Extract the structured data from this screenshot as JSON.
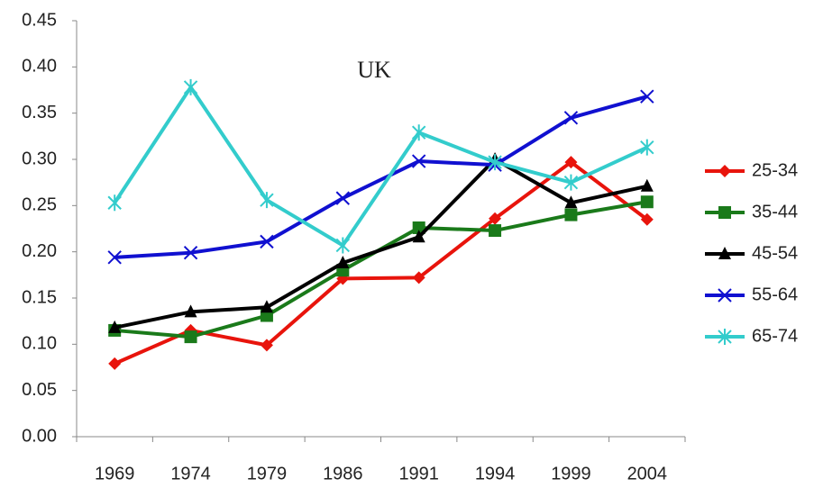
{
  "chart_data": {
    "type": "line",
    "title": "UK",
    "categories": [
      "1969",
      "1974",
      "1979",
      "1986",
      "1991",
      "1994",
      "1999",
      "2004"
    ],
    "ylim": [
      0,
      0.45
    ],
    "yticks": [
      {
        "value": 0,
        "label": "0.00"
      },
      {
        "value": 0.05,
        "label": "0.05"
      },
      {
        "value": 0.1,
        "label": "0.10"
      },
      {
        "value": 0.15,
        "label": "0.15"
      },
      {
        "value": 0.2,
        "label": "0.20"
      },
      {
        "value": 0.25,
        "label": "0.25"
      },
      {
        "value": 0.3,
        "label": "0.30"
      },
      {
        "value": 0.35,
        "label": "0.35"
      },
      {
        "value": 0.4,
        "label": "0.40"
      },
      {
        "value": 0.45,
        "label": "0.45"
      }
    ],
    "grid": false,
    "legend": "right",
    "series": [
      {
        "name": "25-34",
        "color": "#e8140c",
        "marker": "diamond",
        "values": [
          0.079,
          0.115,
          0.099,
          0.171,
          0.172,
          0.236,
          0.297,
          0.235
        ]
      },
      {
        "name": "35-44",
        "color": "#1a7a1a",
        "marker": "square",
        "values": [
          0.115,
          0.108,
          0.131,
          0.18,
          0.226,
          0.223,
          0.24,
          0.254
        ]
      },
      {
        "name": "45-54",
        "color": "#000000",
        "marker": "triangle",
        "values": [
          0.118,
          0.135,
          0.14,
          0.188,
          0.216,
          0.3,
          0.253,
          0.271
        ]
      },
      {
        "name": "55-64",
        "color": "#1010d0",
        "marker": "x",
        "values": [
          0.194,
          0.199,
          0.211,
          0.258,
          0.298,
          0.294,
          0.345,
          0.368
        ]
      },
      {
        "name": "65-74",
        "color": "#33cccc",
        "marker": "star",
        "values": [
          0.253,
          0.378,
          0.256,
          0.207,
          0.329,
          0.297,
          0.275,
          0.313
        ]
      }
    ]
  }
}
